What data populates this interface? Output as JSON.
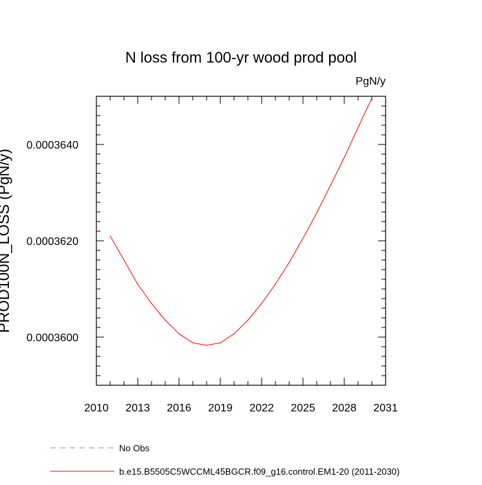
{
  "chart_data": {
    "type": "line",
    "title": "N loss from 100-yr wood prod pool",
    "units_label": "PgN/y",
    "ylabel": "PROD100N_LOSS (PgN/y)",
    "xlabel": "",
    "xlim": [
      2010,
      2031
    ],
    "ylim": [
      0.000359,
      0.000365
    ],
    "x_ticks": [
      2010,
      2013,
      2016,
      2019,
      2022,
      2025,
      2028,
      2031
    ],
    "x_tick_labels": [
      "2010",
      "2013",
      "2016",
      "2019",
      "2022",
      "2025",
      "2028",
      "2031"
    ],
    "y_ticks": [
      0.00036,
      0.000362,
      0.000364
    ],
    "y_tick_labels": [
      "0.0003600",
      "0.0003620",
      "0.0003640"
    ],
    "grid": false,
    "legend_position": "bottom-left, below plot",
    "series": [
      {
        "name": "No Obs",
        "color": "#8888ee",
        "dash": "dashed",
        "x": [],
        "y": []
      },
      {
        "name": "b.e15.B5505C5WCCML45BGCR.f09_g16.control.EM1-20 (2011-2030)",
        "color": "#ff0000",
        "dash": "solid",
        "x": [
          2011,
          2012,
          2013,
          2014,
          2015,
          2016,
          2017,
          2018,
          2019,
          2020,
          2021,
          2022,
          2023,
          2024,
          2025,
          2026,
          2027,
          2028,
          2029,
          2030
        ],
        "y": [
          0.0003621,
          0.0003616,
          0.0003611,
          0.0003607,
          0.00036035,
          0.00036007,
          0.00035988,
          0.00035983,
          0.00035988,
          0.00036007,
          0.00036035,
          0.0003607,
          0.0003611,
          0.00036155,
          0.00036205,
          0.00036258,
          0.00036315,
          0.00036373,
          0.00036435,
          0.00036496
        ]
      }
    ]
  }
}
